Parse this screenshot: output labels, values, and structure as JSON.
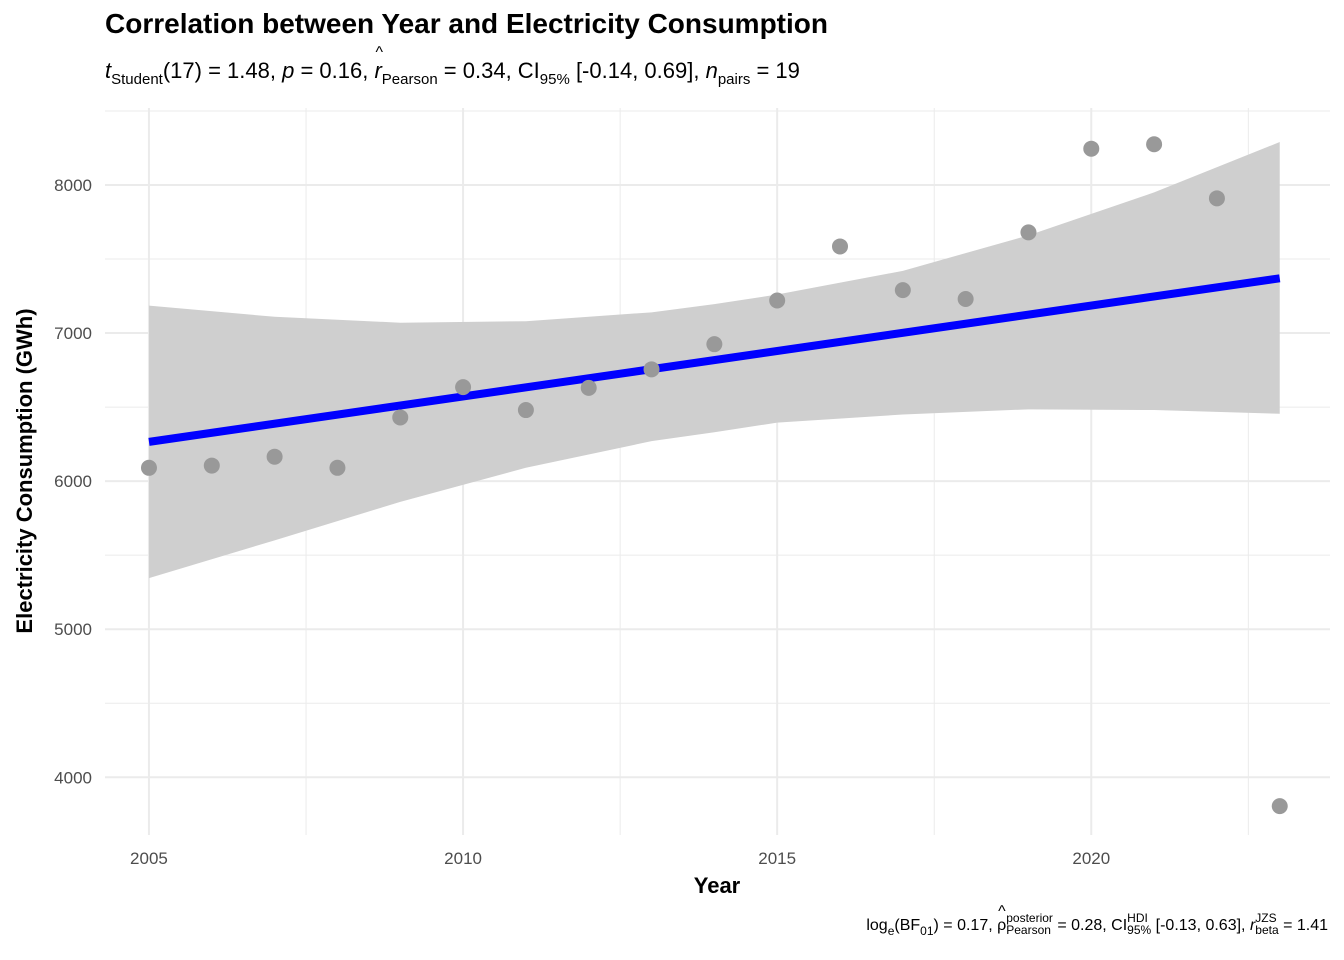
{
  "chart_data": {
    "type": "scatter",
    "title": "Correlation between Year and Electricity Consumption",
    "xlabel": "Year",
    "ylabel": "Electricity Consumption (GWh)",
    "xlim": [
      2004.3,
      2023.8
    ],
    "ylim": [
      3610,
      8520
    ],
    "x_ticks": [
      2005,
      2010,
      2015,
      2020
    ],
    "y_ticks": [
      4000,
      5000,
      6000,
      7000,
      8000
    ],
    "x_tick_labels": [
      "2005",
      "2010",
      "2015",
      "2020"
    ],
    "y_tick_labels": [
      "4000",
      "5000",
      "6000",
      "7000",
      "8000"
    ],
    "grid": true,
    "points": [
      {
        "x": 2005,
        "y": 6090
      },
      {
        "x": 2006,
        "y": 6105
      },
      {
        "x": 2007,
        "y": 6165
      },
      {
        "x": 2008,
        "y": 6090
      },
      {
        "x": 2009,
        "y": 6430
      },
      {
        "x": 2010,
        "y": 6635
      },
      {
        "x": 2011,
        "y": 6480
      },
      {
        "x": 2012,
        "y": 6630
      },
      {
        "x": 2013,
        "y": 6755
      },
      {
        "x": 2014,
        "y": 6925
      },
      {
        "x": 2015,
        "y": 7220
      },
      {
        "x": 2016,
        "y": 7585
      },
      {
        "x": 2017,
        "y": 7290
      },
      {
        "x": 2018,
        "y": 7230
      },
      {
        "x": 2019,
        "y": 7680
      },
      {
        "x": 2020,
        "y": 8245
      },
      {
        "x": 2021,
        "y": 8275
      },
      {
        "x": 2022,
        "y": 7910
      },
      {
        "x": 2023,
        "y": 3805
      }
    ],
    "fit_line": {
      "x": [
        2005,
        2023
      ],
      "y": [
        6265,
        7370
      ]
    },
    "confidence_band": {
      "x": [
        2005,
        2007,
        2009,
        2011,
        2013,
        2014,
        2015,
        2017,
        2019,
        2021,
        2023
      ],
      "upper": [
        7185,
        7110,
        7070,
        7080,
        7140,
        7195,
        7260,
        7420,
        7660,
        7950,
        8290
      ],
      "lower": [
        5345,
        5600,
        5860,
        6090,
        6270,
        6330,
        6395,
        6450,
        6485,
        6480,
        6455
      ]
    },
    "colors": {
      "points": "#999999",
      "line": "#0000ff",
      "band": "#cfcfcf",
      "grid": "#ebebeb"
    }
  },
  "subtitle": {
    "t_sym": "t",
    "t_sub": "Student",
    "t_val": "(17) = 1.48, ",
    "p_sym": "p",
    "p_val": " = 0.16, ",
    "r_sym": "r",
    "r_sub": "Pearson",
    "r_val": " = 0.34, CI",
    "ci_sub": "95%",
    "ci_val": " [-0.14, 0.69], ",
    "n_sym": "n",
    "n_sub": "pairs",
    "n_val": " = 19"
  },
  "caption": {
    "log_text": "log",
    "log_sub": "e",
    "bf_open": "(BF",
    "bf_sub": "01",
    "bf_val": ") = 0.17, ",
    "rho_sym": "ρ",
    "rho_sup": "posterior",
    "rho_sub": "Pearson",
    "rho_val": " = 0.28, CI",
    "ci_sup": "HDI",
    "ci_sub": "95%",
    "ci_val": " [-0.13, 0.63], ",
    "r_sym": "r",
    "r_sup": "JZS",
    "r_sub": "beta",
    "r_val": " = 1.41"
  }
}
